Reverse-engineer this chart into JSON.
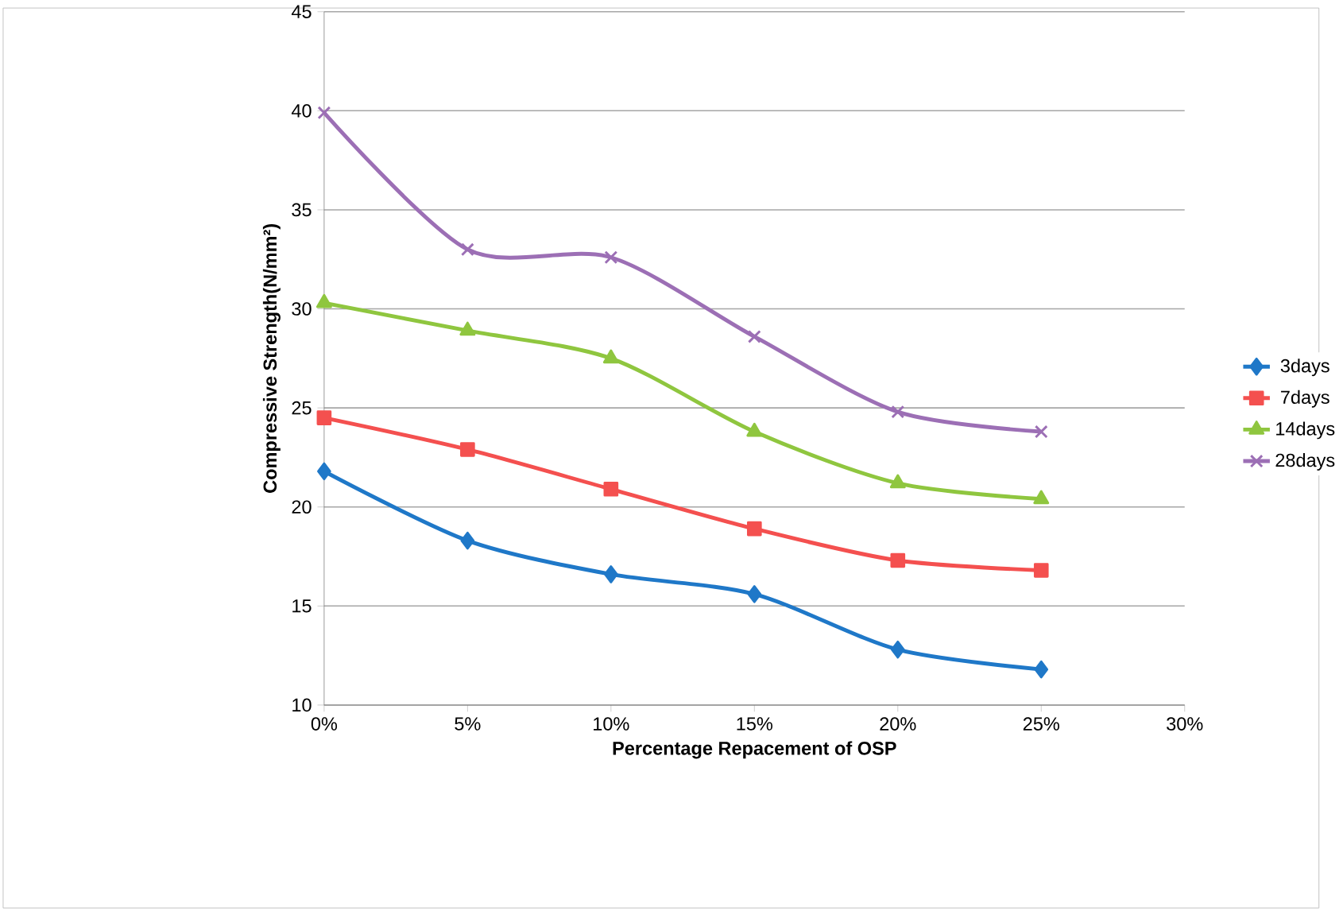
{
  "chart_data": {
    "type": "line",
    "xlabel": "Percentage  Repacement of OSP",
    "ylabel": "Compressive Strength(N/mm²)",
    "x": [
      0,
      5,
      10,
      15,
      20,
      25
    ],
    "xlim": [
      0,
      30
    ],
    "xticks": [
      {
        "value": 0,
        "label": "0%"
      },
      {
        "value": 5,
        "label": "5%"
      },
      {
        "value": 10,
        "label": "10%"
      },
      {
        "value": 15,
        "label": "15%"
      },
      {
        "value": 20,
        "label": "20%"
      },
      {
        "value": 25,
        "label": "25%"
      },
      {
        "value": 30,
        "label": "30%"
      }
    ],
    "ylim": [
      10,
      45
    ],
    "yticks": [
      10,
      15,
      20,
      25,
      30,
      35,
      40,
      45
    ],
    "grid": "y",
    "legend": "right",
    "line_style": "solid",
    "series": [
      {
        "name": "3days",
        "color": "#1f78c8",
        "marker": "diamond",
        "values": [
          21.8,
          18.3,
          16.6,
          15.6,
          12.8,
          11.8
        ]
      },
      {
        "name": "7days",
        "color": "#f4504f",
        "marker": "square",
        "values": [
          24.5,
          22.9,
          20.9,
          18.9,
          17.3,
          16.8
        ]
      },
      {
        "name": "14days",
        "color": "#8fc63f",
        "marker": "triangle",
        "values": [
          30.3,
          28.9,
          27.5,
          23.8,
          21.2,
          20.4
        ]
      },
      {
        "name": "28days",
        "color": "#9c6fb5",
        "marker": "cross",
        "values": [
          39.9,
          33.0,
          32.6,
          28.6,
          24.8,
          23.8
        ]
      }
    ]
  }
}
